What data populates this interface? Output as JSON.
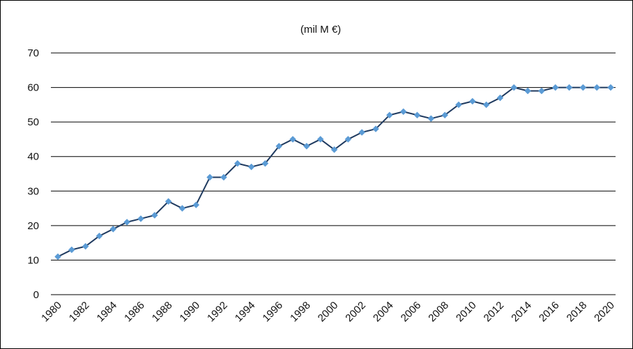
{
  "chart_data": {
    "type": "line",
    "title": "(mil M €)",
    "xlabel": "",
    "ylabel": "",
    "ylim": [
      0,
      70
    ],
    "yticks": [
      0,
      10,
      20,
      30,
      40,
      50,
      60,
      70
    ],
    "xlim": [
      1980,
      2020
    ],
    "xtick_labels": [
      "1980",
      "1982",
      "1984",
      "1986",
      "1988",
      "1990",
      "1992",
      "1994",
      "1996",
      "1998",
      "2000",
      "2002",
      "2004",
      "2006",
      "2008",
      "2010",
      "2012",
      "2014",
      "2016",
      "2018",
      "2020"
    ],
    "grid": true,
    "legend": "none",
    "colors": {
      "line": "#1f3a5f",
      "marker": "#5b9bd5",
      "grid": "#000000",
      "frame": "#000000"
    },
    "x": [
      1980,
      1981,
      1982,
      1983,
      1984,
      1985,
      1986,
      1987,
      1988,
      1989,
      1990,
      1991,
      1992,
      1993,
      1994,
      1995,
      1996,
      1997,
      1998,
      1999,
      2000,
      2001,
      2002,
      2003,
      2004,
      2005,
      2006,
      2007,
      2008,
      2009,
      2010,
      2011,
      2012,
      2013,
      2014,
      2015,
      2016,
      2017,
      2018,
      2019,
      2020
    ],
    "series": [
      {
        "values": [
          11,
          13,
          14,
          17,
          19,
          21,
          22,
          23,
          27,
          25,
          26,
          34,
          34,
          38,
          37,
          38,
          43,
          45,
          43,
          45,
          42,
          45,
          47,
          48,
          52,
          53,
          52,
          51,
          52,
          55,
          56,
          55,
          57,
          60,
          59,
          59,
          60,
          60,
          60,
          60,
          60
        ]
      }
    ]
  }
}
